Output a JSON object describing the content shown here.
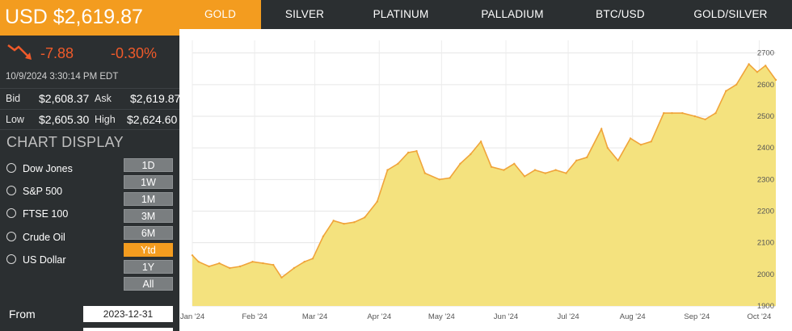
{
  "quote": {
    "price": "USD $2,619.87",
    "change": "-7.88",
    "change_pct": "-0.30%",
    "timestamp": "10/9/2024 3:30:14 PM EDT",
    "bid_label": "Bid",
    "bid": "$2,608.37",
    "ask_label": "Ask",
    "ask": "$2,619.87",
    "low_label": "Low",
    "low": "$2,605.30",
    "high_label": "High",
    "high": "$2,624.60"
  },
  "chart_display": {
    "title": "CHART DISPLAY",
    "overlays": [
      "Dow Jones",
      "S&P 500",
      "FTSE 100",
      "Crude Oil",
      "US Dollar"
    ]
  },
  "ranges": [
    "1D",
    "1W",
    "1M",
    "3M",
    "6M",
    "Ytd",
    "1Y",
    "All"
  ],
  "active_range": "Ytd",
  "from": {
    "label": "From",
    "value": "2023-12-31"
  },
  "tabs": [
    "GOLD",
    "SILVER",
    "PLATINUM",
    "PALLADIUM",
    "BTC/USD",
    "GOLD/SILVER"
  ],
  "active_tab": "GOLD",
  "colors": {
    "accent": "#f39c1f",
    "negative": "#ef5a2a",
    "area_fill": "#f4e27e",
    "area_line": "#f0a43a",
    "panel": "#2b2f31"
  },
  "chart_data": {
    "type": "area",
    "title": "",
    "xlabel": "",
    "ylabel": "",
    "ylim": [
      1900,
      2740
    ],
    "yticks": [
      1900,
      2000,
      2100,
      2200,
      2300,
      2400,
      2500,
      2600,
      2700
    ],
    "xticks": [
      "Jan '24",
      "Feb '24",
      "Mar '24",
      "Apr '24",
      "May '24",
      "Jun '24",
      "Jul '24",
      "Aug '24",
      "Sep '24",
      "Oct '24"
    ],
    "x": [
      "2024-01-02",
      "2024-01-05",
      "2024-01-10",
      "2024-01-15",
      "2024-01-20",
      "2024-01-25",
      "2024-01-31",
      "2024-02-05",
      "2024-02-10",
      "2024-02-14",
      "2024-02-20",
      "2024-02-25",
      "2024-02-29",
      "2024-03-05",
      "2024-03-10",
      "2024-03-15",
      "2024-03-20",
      "2024-03-25",
      "2024-03-31",
      "2024-04-05",
      "2024-04-10",
      "2024-04-15",
      "2024-04-19",
      "2024-04-23",
      "2024-04-30",
      "2024-05-05",
      "2024-05-10",
      "2024-05-15",
      "2024-05-20",
      "2024-05-25",
      "2024-05-31",
      "2024-06-05",
      "2024-06-10",
      "2024-06-15",
      "2024-06-20",
      "2024-06-25",
      "2024-06-30",
      "2024-07-05",
      "2024-07-10",
      "2024-07-17",
      "2024-07-20",
      "2024-07-25",
      "2024-07-31",
      "2024-08-05",
      "2024-08-10",
      "2024-08-16",
      "2024-08-20",
      "2024-08-25",
      "2024-08-31",
      "2024-09-05",
      "2024-09-10",
      "2024-09-15",
      "2024-09-20",
      "2024-09-26",
      "2024-09-30",
      "2024-10-04",
      "2024-10-09"
    ],
    "values": [
      2060,
      2040,
      2025,
      2035,
      2020,
      2025,
      2040,
      2035,
      2030,
      1990,
      2020,
      2040,
      2050,
      2120,
      2170,
      2160,
      2165,
      2180,
      2230,
      2330,
      2350,
      2385,
      2390,
      2320,
      2300,
      2305,
      2350,
      2380,
      2420,
      2340,
      2330,
      2350,
      2310,
      2330,
      2320,
      2330,
      2320,
      2360,
      2370,
      2460,
      2400,
      2360,
      2430,
      2410,
      2420,
      2510,
      2510,
      2510,
      2500,
      2490,
      2510,
      2580,
      2600,
      2665,
      2640,
      2660,
      2615
    ]
  }
}
